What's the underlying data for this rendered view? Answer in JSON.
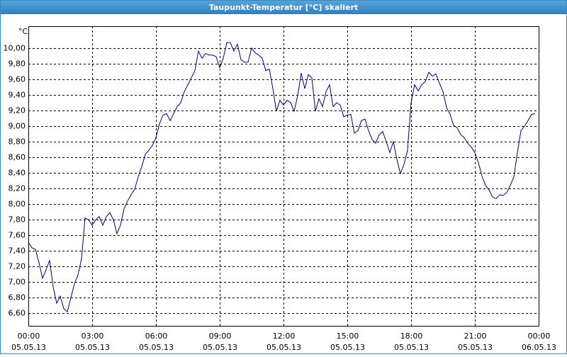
{
  "chart_data": {
    "type": "line",
    "title": "Taupunkt-Temperatur [°C] skaliert",
    "y_label": "°C",
    "x": [
      0,
      10,
      20,
      30,
      40,
      50,
      60,
      70,
      80,
      90,
      100,
      110,
      120,
      130,
      140,
      150,
      160,
      170,
      180,
      190,
      200,
      210,
      220,
      230,
      240,
      250,
      260,
      270,
      280,
      290,
      300,
      310,
      320,
      330,
      340,
      350,
      360,
      370,
      380,
      390,
      400,
      410,
      420,
      430,
      440,
      450,
      460,
      470,
      480,
      490,
      500,
      510,
      520,
      530,
      540,
      550,
      560,
      570,
      580,
      590,
      600,
      610,
      620,
      630,
      640,
      650,
      660,
      670,
      680,
      690,
      700,
      710,
      720,
      730,
      740,
      750,
      760,
      770,
      780,
      790,
      800,
      810,
      820,
      830,
      840,
      850,
      860,
      870,
      880,
      890,
      900,
      910,
      920,
      930,
      940,
      950,
      960,
      970,
      980,
      990,
      1000,
      1010,
      1020,
      1030,
      1040,
      1050,
      1060,
      1070,
      1080,
      1090,
      1100,
      1110,
      1120,
      1130,
      1140,
      1150,
      1160,
      1170,
      1180,
      1190,
      1200,
      1210,
      1220,
      1230,
      1240,
      1250,
      1260,
      1270,
      1280,
      1290,
      1300,
      1310,
      1320,
      1330,
      1340,
      1350,
      1360,
      1370,
      1380,
      1390,
      1400,
      1410,
      1420,
      1430
    ],
    "series": [
      {
        "color": "#000080",
        "values": [
          7.51,
          7.44,
          7.42,
          7.25,
          7.05,
          7.16,
          7.28,
          6.94,
          6.73,
          6.82,
          6.66,
          6.62,
          6.8,
          6.98,
          7.09,
          7.3,
          7.82,
          7.8,
          7.73,
          7.8,
          7.84,
          7.73,
          7.84,
          7.89,
          7.8,
          7.62,
          7.73,
          7.94,
          8.04,
          8.12,
          8.19,
          8.35,
          8.48,
          8.64,
          8.69,
          8.75,
          8.85,
          9.03,
          9.14,
          9.16,
          9.07,
          9.16,
          9.25,
          9.3,
          9.44,
          9.53,
          9.62,
          9.71,
          9.96,
          9.87,
          9.93,
          9.91,
          9.91,
          9.89,
          9.75,
          9.87,
          10.07,
          10.07,
          9.96,
          10.05,
          9.85,
          9.82,
          9.82,
          10.0,
          9.94,
          9.91,
          9.87,
          9.71,
          9.73,
          9.48,
          9.19,
          9.33,
          9.27,
          9.33,
          9.3,
          9.19,
          9.39,
          9.68,
          9.48,
          9.66,
          9.62,
          9.19,
          9.35,
          9.25,
          9.44,
          9.53,
          9.25,
          9.3,
          9.27,
          9.12,
          9.14,
          9.15,
          8.91,
          8.94,
          9.07,
          9.09,
          8.94,
          8.83,
          8.78,
          8.89,
          8.93,
          8.8,
          8.66,
          8.8,
          8.57,
          8.39,
          8.51,
          8.69,
          9.3,
          9.53,
          9.45,
          9.53,
          9.57,
          9.69,
          9.64,
          9.67,
          9.55,
          9.44,
          9.24,
          9.15,
          9.01,
          8.98,
          8.89,
          8.85,
          8.78,
          8.73,
          8.66,
          8.53,
          8.36,
          8.24,
          8.18,
          8.09,
          8.07,
          8.12,
          8.11,
          8.15,
          8.24,
          8.35,
          8.66,
          8.94,
          9.0,
          9.07,
          9.15,
          9.16
        ]
      }
    ],
    "xlim": [
      0,
      1440
    ],
    "xticks": [
      {
        "value": 0,
        "label": "00:00"
      },
      {
        "value": 180,
        "label": "03:00"
      },
      {
        "value": 360,
        "label": "06:00"
      },
      {
        "value": 540,
        "label": "09:00"
      },
      {
        "value": 720,
        "label": "12:00"
      },
      {
        "value": 900,
        "label": "15:00"
      },
      {
        "value": 1080,
        "label": "18:00"
      },
      {
        "value": 1260,
        "label": "21:00"
      },
      {
        "value": 1440,
        "label": "00:00"
      }
    ],
    "xtick_dates": [
      "05.05.13",
      "05.05.13",
      "05.05.13",
      "05.05.13",
      "05.05.13",
      "05.05.13",
      "05.05.13",
      "05.05.13",
      "06.05.13"
    ],
    "ylim": [
      6.44,
      10.28
    ],
    "yticks": [
      {
        "value": 6.6,
        "label": "6,60"
      },
      {
        "value": 6.8,
        "label": "6,80"
      },
      {
        "value": 7.0,
        "label": "7,00"
      },
      {
        "value": 7.2,
        "label": "7,20"
      },
      {
        "value": 7.4,
        "label": "7,40"
      },
      {
        "value": 7.6,
        "label": "7,60"
      },
      {
        "value": 7.8,
        "label": "7,80"
      },
      {
        "value": 8.0,
        "label": "8,00"
      },
      {
        "value": 8.2,
        "label": "8,20"
      },
      {
        "value": 8.4,
        "label": "8,40"
      },
      {
        "value": 8.6,
        "label": "8,60"
      },
      {
        "value": 8.8,
        "label": "8,80"
      },
      {
        "value": 9.0,
        "label": "9,00"
      },
      {
        "value": 9.2,
        "label": "9,20"
      },
      {
        "value": 9.4,
        "label": "9,40"
      },
      {
        "value": 9.6,
        "label": "9,60"
      },
      {
        "value": 9.8,
        "label": "9,80"
      },
      {
        "value": 10.0,
        "label": "10,00"
      }
    ],
    "grid": true
  }
}
